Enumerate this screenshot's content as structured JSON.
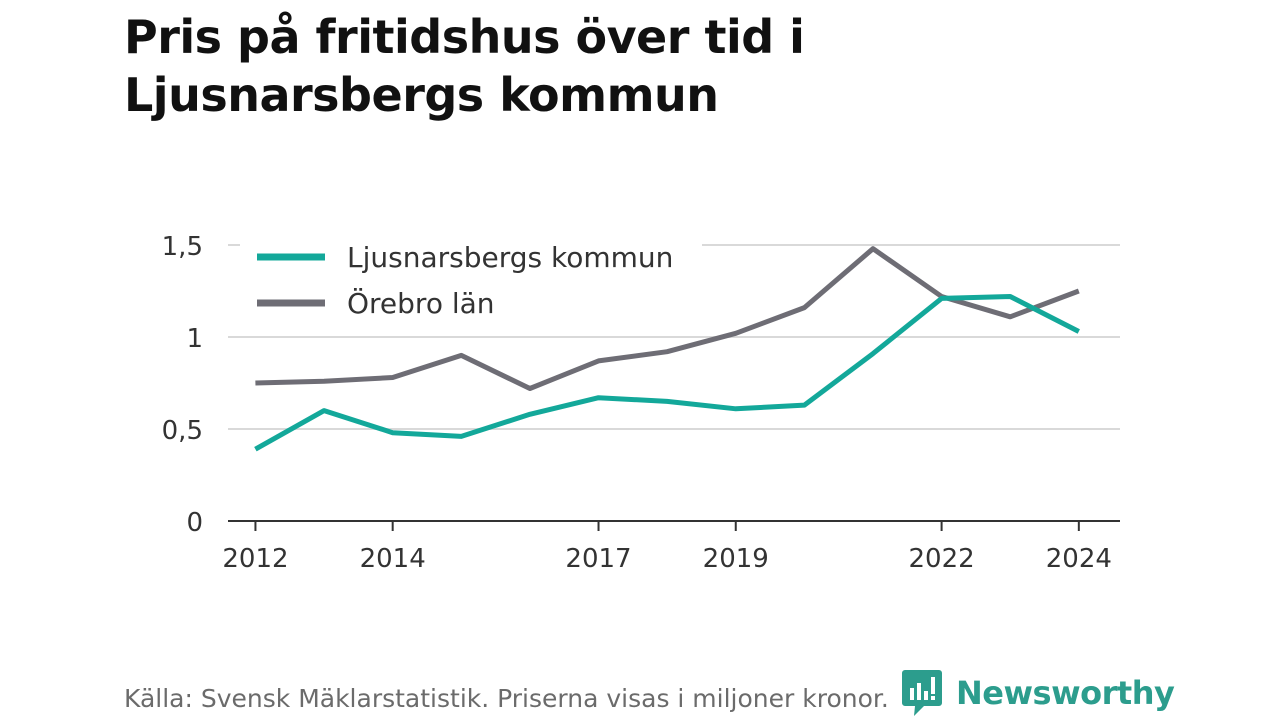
{
  "title_line1": "Pris på fritidshus över tid i",
  "title_line2": "Ljusnarsbergs kommun",
  "source": "Källa: Svensk Mäklarstatistik. Priserna visas i miljoner kronor.",
  "brand": {
    "name": "Newsworthy",
    "icon": "newsworthy-logo-icon",
    "color": "#2c9d8d"
  },
  "colors": {
    "series_kommun": "#13a89a",
    "series_lan": "#6e6d75",
    "grid": "#d9d9d9",
    "axis": "#333333",
    "text": "#333333"
  },
  "chart_data": {
    "type": "line",
    "title": "",
    "xlabel": "",
    "ylabel": "",
    "x": [
      2012,
      2013,
      2014,
      2015,
      2016,
      2017,
      2018,
      2019,
      2020,
      2021,
      2022,
      2023,
      2024
    ],
    "xticks": [
      2012,
      2014,
      2017,
      2019,
      2022,
      2024
    ],
    "xlim": [
      2011.6,
      2024.6
    ],
    "ylim": [
      0,
      1.5
    ],
    "yticks": [
      {
        "value": 0,
        "label": "0"
      },
      {
        "value": 0.5,
        "label": "0,5"
      },
      {
        "value": 1,
        "label": "1"
      },
      {
        "value": 1.5,
        "label": "1,5"
      }
    ],
    "grid": true,
    "legend_position": "top-left",
    "series": [
      {
        "name": "Ljusnarsbergs kommun",
        "values": [
          0.39,
          0.6,
          0.48,
          0.46,
          0.58,
          0.67,
          0.65,
          0.61,
          0.63,
          0.91,
          1.21,
          1.22,
          1.03
        ]
      },
      {
        "name": "Örebro län",
        "values": [
          0.75,
          0.76,
          0.78,
          0.9,
          0.72,
          0.87,
          0.92,
          1.02,
          1.16,
          1.48,
          1.22,
          1.11,
          1.25
        ]
      }
    ]
  }
}
